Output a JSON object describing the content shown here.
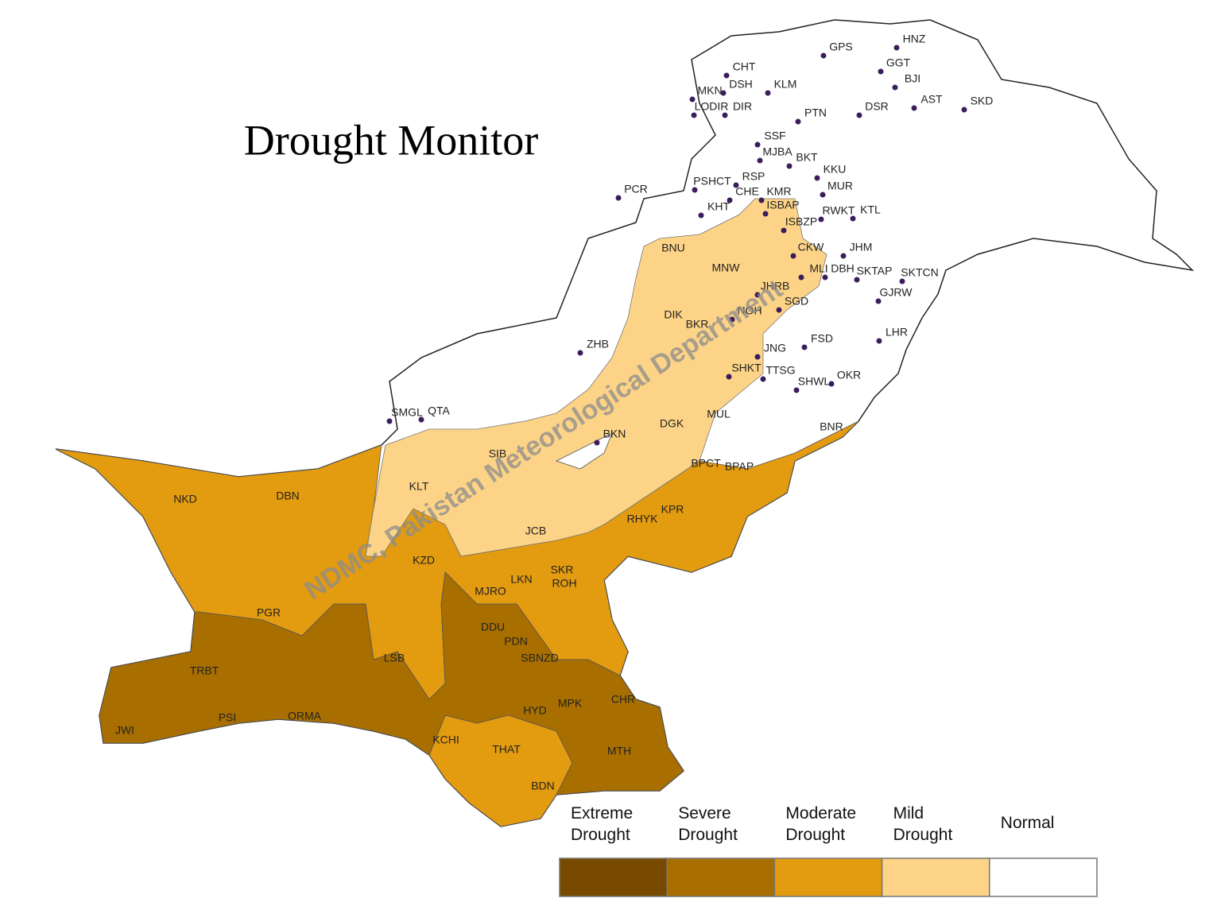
{
  "title": "Drought Monitor",
  "watermark": "NDMC, Pakistan Meteorological Department",
  "stations": [
    "GPS",
    "HNZ",
    "CHT",
    "GGT",
    "MKN",
    "DSH",
    "KLM",
    "BJI",
    "LODIR",
    "DIR",
    "AST",
    "SKD",
    "PTN",
    "DSR",
    "SSF",
    "MJBA",
    "BKT",
    "PSHCT",
    "RSP",
    "CHE",
    "KMR",
    "ISBAP",
    "KKU",
    "MUR",
    "PCR",
    "KHT",
    "RWKT",
    "KTL",
    "ISBZP",
    "BNU",
    "CKW",
    "JHM",
    "MNW",
    "MLI",
    "DBH",
    "SKTAP",
    "SKTCN",
    "JHRB",
    "GJRW",
    "SGD",
    "NOH",
    "DIK",
    "BKR",
    "LHR",
    "ZHB",
    "FSD",
    "JNG",
    "SHKT",
    "TTSG",
    "OKR",
    "SHWL",
    "SMGL",
    "QTA",
    "MUL",
    "DGK",
    "BNR",
    "BKN",
    "SIB",
    "BPCT",
    "BPAP",
    "KLT",
    "NKD",
    "DBN",
    "KPR",
    "RHYK",
    "JCB",
    "KZD",
    "SKR",
    "LKN",
    "ROH",
    "MJRO",
    "PGR",
    "DDU",
    "PDN",
    "SBNZD",
    "LSB",
    "TRBT",
    "CHR",
    "MPK",
    "HYD",
    "ORMA",
    "PSI",
    "JWI",
    "KCHI",
    "THAT",
    "MTH",
    "BDN"
  ],
  "legend": [
    {
      "label": "Extreme Drought",
      "color": "#774a00"
    },
    {
      "label": "Severe Drought",
      "color": "#a86f00"
    },
    {
      "label": "Moderate Drought",
      "color": "#e39b10"
    },
    {
      "label": "Mild Drought",
      "color": "#fdd487"
    },
    {
      "label": "Normal",
      "color": "#ffffff"
    }
  ]
}
